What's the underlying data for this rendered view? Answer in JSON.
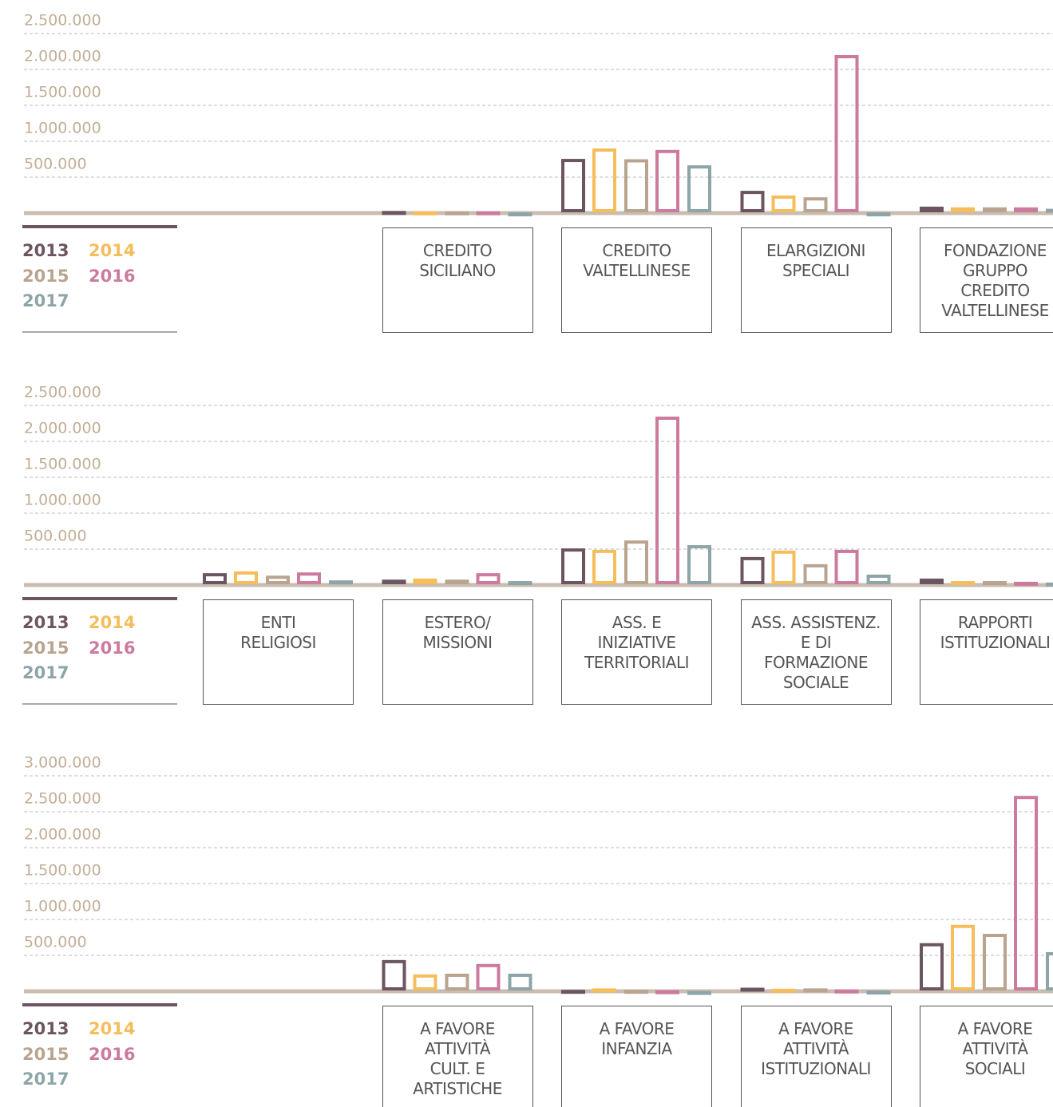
{
  "chart_data": [
    {
      "type": "bar",
      "categories": [
        null,
        "CREDITO\nSICILIANO",
        "CREDITO\nVALTELLINESE",
        "ELARGIZIONI\nSPECIALI",
        "FONDAZIONE\nGRUPPO\nCREDITO\nVALTELLINESE"
      ],
      "series": [
        {
          "name": "2013",
          "color": "#6b5560",
          "values": [
            null,
            30000,
            755000,
            310000,
            90000
          ]
        },
        {
          "name": "2014",
          "color": "#f5bd5b",
          "values": [
            null,
            25000,
            900000,
            245000,
            80000
          ]
        },
        {
          "name": "2015",
          "color": "#b8a48f",
          "values": [
            null,
            25000,
            750000,
            220000,
            80000
          ]
        },
        {
          "name": "2016",
          "color": "#cc7a9e",
          "values": [
            null,
            25000,
            880000,
            2200000,
            80000
          ]
        },
        {
          "name": "2017",
          "color": "#8ea5a8",
          "values": [
            null,
            10000,
            665000,
            10000,
            60000
          ]
        }
      ],
      "ylim": [
        0,
        2500000
      ],
      "yticks": [
        {
          "value": 500000,
          "label": "500.000"
        },
        {
          "value": 1000000,
          "label": "1.000.000"
        },
        {
          "value": 1500000,
          "label": "1.500.000"
        },
        {
          "value": 2000000,
          "label": "2.000.000"
        },
        {
          "value": 2500000,
          "label": "2.500.000"
        }
      ],
      "grid": true
    },
    {
      "type": "bar",
      "categories": [
        "ENTI\nRELIGIOSI",
        "ESTERO/\nMISSIONI",
        "ASS. E\nINIZIATIVE\nTERRITORIALI",
        "ASS. ASSISTENZ.\nE DI\nFORMAZIONE\nSOCIALE",
        "RAPPORTI\nISTITUZIONALI"
      ],
      "series": [
        {
          "name": "2013",
          "color": "#6b5560",
          "values": [
            165000,
            75000,
            510000,
            390000,
            90000
          ]
        },
        {
          "name": "2014",
          "color": "#f5bd5b",
          "values": [
            190000,
            90000,
            490000,
            480000,
            55000
          ]
        },
        {
          "name": "2015",
          "color": "#b8a48f",
          "values": [
            130000,
            75000,
            620000,
            290000,
            55000
          ]
        },
        {
          "name": "2016",
          "color": "#cc7a9e",
          "values": [
            175000,
            165000,
            2345000,
            490000,
            45000
          ]
        },
        {
          "name": "2017",
          "color": "#8ea5a8",
          "values": [
            65000,
            55000,
            555000,
            145000,
            35000
          ]
        }
      ],
      "ylim": [
        0,
        2500000
      ],
      "yticks": [
        {
          "value": 500000,
          "label": "500.000"
        },
        {
          "value": 1000000,
          "label": "1.000.000"
        },
        {
          "value": 1500000,
          "label": "1.500.000"
        },
        {
          "value": 2000000,
          "label": "2.000.000"
        },
        {
          "value": 2500000,
          "label": "2.500.000"
        }
      ],
      "grid": true
    },
    {
      "type": "bar",
      "categories": [
        null,
        "A FAVORE\nATTIVITÀ\nCULT. E\nARTISTICHE",
        "A FAVORE\nINFANZIA",
        "A FAVORE\nATTIVITÀ\nISTITUZIONALI",
        "A FAVORE\nATTIVITÀ\nSOCIALI"
      ],
      "series": [
        {
          "name": "2013",
          "color": "#6b5560",
          "values": [
            null,
            435000,
            20000,
            50000,
            670000
          ]
        },
        {
          "name": "2014",
          "color": "#f5bd5b",
          "values": [
            null,
            235000,
            40000,
            35000,
            925000
          ]
        },
        {
          "name": "2015",
          "color": "#b8a48f",
          "values": [
            null,
            245000,
            20000,
            40000,
            800000
          ]
        },
        {
          "name": "2016",
          "color": "#cc7a9e",
          "values": [
            null,
            380000,
            15000,
            25000,
            2720000
          ]
        },
        {
          "name": "2017",
          "color": "#8ea5a8",
          "values": [
            null,
            245000,
            5000,
            10000,
            545000
          ]
        }
      ],
      "ylim": [
        0,
        3000000
      ],
      "yticks": [
        {
          "value": 500000,
          "label": "500.000"
        },
        {
          "value": 1000000,
          "label": "1.000.000"
        },
        {
          "value": 1500000,
          "label": "1.500.000"
        },
        {
          "value": 2000000,
          "label": "2.000.000"
        },
        {
          "value": 2500000,
          "label": "2.500.000"
        },
        {
          "value": 3000000,
          "label": "3.000.000"
        }
      ],
      "grid": true
    }
  ]
}
